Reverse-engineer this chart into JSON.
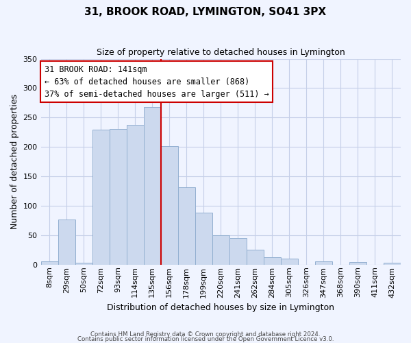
{
  "title": "31, BROOK ROAD, LYMINGTON, SO41 3PX",
  "subtitle": "Size of property relative to detached houses in Lymington",
  "xlabel": "Distribution of detached houses by size in Lymington",
  "ylabel": "Number of detached properties",
  "bar_labels": [
    "8sqm",
    "29sqm",
    "50sqm",
    "72sqm",
    "93sqm",
    "114sqm",
    "135sqm",
    "156sqm",
    "178sqm",
    "199sqm",
    "220sqm",
    "241sqm",
    "262sqm",
    "284sqm",
    "305sqm",
    "326sqm",
    "347sqm",
    "368sqm",
    "390sqm",
    "411sqm",
    "432sqm"
  ],
  "bar_values": [
    5,
    77,
    3,
    229,
    231,
    237,
    268,
    201,
    131,
    88,
    50,
    45,
    25,
    12,
    10,
    0,
    6,
    0,
    4,
    0,
    3
  ],
  "bar_color": "#ccd9ee",
  "bar_edge_color": "#92afd0",
  "highlight_index": 6,
  "highlight_line_color": "#cc0000",
  "ylim": [
    0,
    350
  ],
  "yticks": [
    0,
    50,
    100,
    150,
    200,
    250,
    300,
    350
  ],
  "annotation_title": "31 BROOK ROAD: 141sqm",
  "annotation_line1": "← 63% of detached houses are smaller (868)",
  "annotation_line2": "37% of semi-detached houses are larger (511) →",
  "annotation_box_color": "#ffffff",
  "annotation_box_edge": "#cc0000",
  "footer_line1": "Contains HM Land Registry data © Crown copyright and database right 2024.",
  "footer_line2": "Contains public sector information licensed under the Open Government Licence v3.0.",
  "background_color": "#f0f4ff",
  "grid_color": "#c5cfe8",
  "title_fontsize": 11,
  "subtitle_fontsize": 9,
  "ylabel_fontsize": 9,
  "xlabel_fontsize": 9,
  "tick_fontsize": 8
}
